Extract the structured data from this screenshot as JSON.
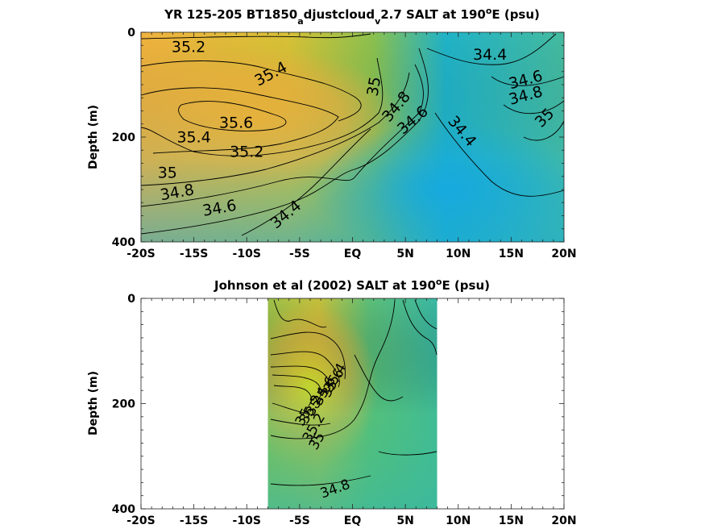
{
  "chart_data": [
    {
      "type": "heatmap",
      "title_main": "YR 125-205 BT1850",
      "title_sub1": "a",
      "title_mid": "djustcloud",
      "title_sub2": "v",
      "title_tail": "2.7 SALT at 190",
      "title_sup": "o",
      "title_end": "E (psu)",
      "ylabel": "Depth (m)",
      "xlim": [
        -20,
        20
      ],
      "ylim": [
        0,
        400
      ],
      "x_ticks": [
        {
          "v": -20,
          "label": "-20S"
        },
        {
          "v": -15,
          "label": "-15S"
        },
        {
          "v": -10,
          "label": "-10S"
        },
        {
          "v": -5,
          "label": "-5S"
        },
        {
          "v": 0,
          "label": "EQ"
        },
        {
          "v": 5,
          "label": "5N"
        },
        {
          "v": 10,
          "label": "10N"
        },
        {
          "v": 15,
          "label": "15N"
        },
        {
          "v": 20,
          "label": "20N"
        }
      ],
      "y_ticks": [
        {
          "v": 0,
          "label": "0"
        },
        {
          "v": 200,
          "label": "200"
        },
        {
          "v": 400,
          "label": "400"
        }
      ],
      "contour_labels": [
        {
          "text": "35.2",
          "x": -15.5,
          "y": 38,
          "rot": 0
        },
        {
          "text": "35.4",
          "x": -7.5,
          "y": 88,
          "rot": -28
        },
        {
          "text": "35.6",
          "x": -11.0,
          "y": 182,
          "rot": 0
        },
        {
          "text": "35.4",
          "x": -15.0,
          "y": 210,
          "rot": 0
        },
        {
          "text": "35.2",
          "x": -10.0,
          "y": 238,
          "rot": 0
        },
        {
          "text": "35",
          "x": -17.5,
          "y": 278,
          "rot": 0
        },
        {
          "text": "34.8",
          "x": -16.5,
          "y": 315,
          "rot": -10
        },
        {
          "text": "34.6",
          "x": -12.5,
          "y": 345,
          "rot": -10
        },
        {
          "text": "34.4",
          "x": -6.0,
          "y": 355,
          "rot": -40
        },
        {
          "text": "35",
          "x": 2.5,
          "y": 105,
          "rot": -80
        },
        {
          "text": "34.8",
          "x": 4.5,
          "y": 148,
          "rot": -50
        },
        {
          "text": "34.6",
          "x": 6.0,
          "y": 175,
          "rot": -40
        },
        {
          "text": "34.4",
          "x": 10.0,
          "y": 195,
          "rot": 50
        },
        {
          "text": "34.4",
          "x": 13.0,
          "y": 52,
          "rot": 0
        },
        {
          "text": "34.6",
          "x": 16.5,
          "y": 100,
          "rot": -15
        },
        {
          "text": "34.8",
          "x": 16.5,
          "y": 130,
          "rot": -15
        },
        {
          "text": "35",
          "x": 18.5,
          "y": 170,
          "rot": -45
        }
      ]
    },
    {
      "type": "heatmap",
      "title_main": "Johnson et al (2002) SALT at 190",
      "title_sup": "o",
      "title_end": "E (psu)",
      "ylabel": "Depth (m)",
      "xlim": [
        -20,
        20
      ],
      "ylim": [
        0,
        400
      ],
      "data_extent_x": [
        -8,
        8
      ],
      "x_ticks": [
        {
          "v": -20,
          "label": "-20S"
        },
        {
          "v": -15,
          "label": "-15S"
        },
        {
          "v": -10,
          "label": "-10S"
        },
        {
          "v": -5,
          "label": "-5S"
        },
        {
          "v": 0,
          "label": "EQ"
        },
        {
          "v": 5,
          "label": "5N"
        },
        {
          "v": 10,
          "label": "10N"
        },
        {
          "v": 15,
          "label": "15N"
        },
        {
          "v": 20,
          "label": "20N"
        }
      ],
      "y_ticks": [
        {
          "v": 0,
          "label": "0"
        },
        {
          "v": 200,
          "label": "200"
        },
        {
          "v": 400,
          "label": "400"
        }
      ],
      "contour_labels": [
        {
          "text": "35",
          "x": -4.3,
          "y": 230,
          "rot": -60
        },
        {
          "text": "35.2",
          "x": -3.6,
          "y": 215,
          "rot": -60
        },
        {
          "text": "35.4",
          "x": -3.0,
          "y": 200,
          "rot": -60
        },
        {
          "text": "35.6",
          "x": -2.3,
          "y": 180,
          "rot": -60
        },
        {
          "text": "35.6",
          "x": -1.5,
          "y": 165,
          "rot": -60
        },
        {
          "text": "35.4",
          "x": -1.3,
          "y": 155,
          "rot": -60
        },
        {
          "text": "35.2",
          "x": -3.3,
          "y": 250,
          "rot": -60
        },
        {
          "text": "35",
          "x": -3.0,
          "y": 275,
          "rot": -60
        },
        {
          "text": "34.8",
          "x": -1.5,
          "y": 370,
          "rot": -20
        }
      ]
    }
  ]
}
